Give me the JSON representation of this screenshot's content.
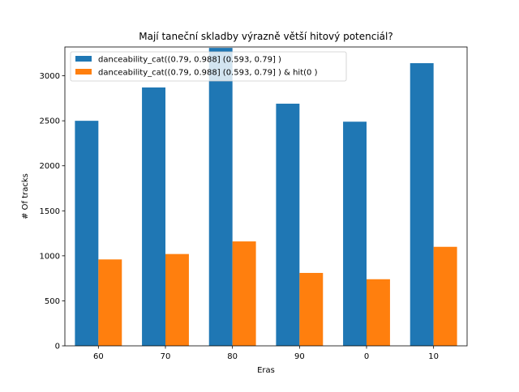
{
  "chart_data": {
    "type": "bar",
    "title": "Mají taneční skladby výrazně větší hitový potenciál?",
    "xlabel": "Eras",
    "ylabel": "# Of tracks",
    "categories": [
      "60",
      "70",
      "80",
      "90",
      "0",
      "10"
    ],
    "series": [
      {
        "name": "danceability_cat((0.79, 0.988] (0.593, 0.79] )",
        "color": "#1f77b4",
        "values": [
          2500,
          2870,
          3310,
          2690,
          2490,
          3140
        ]
      },
      {
        "name": "danceability_cat((0.79, 0.988] (0.593, 0.79] ) & hit(0 )",
        "color": "#ff7f0e",
        "values": [
          960,
          1020,
          1160,
          810,
          740,
          1100
        ]
      }
    ],
    "ylim": [
      0,
      3320
    ],
    "yticks": [
      0,
      500,
      1000,
      1500,
      2000,
      2500,
      3000
    ],
    "grid": false,
    "legend_position": "upper-left"
  }
}
